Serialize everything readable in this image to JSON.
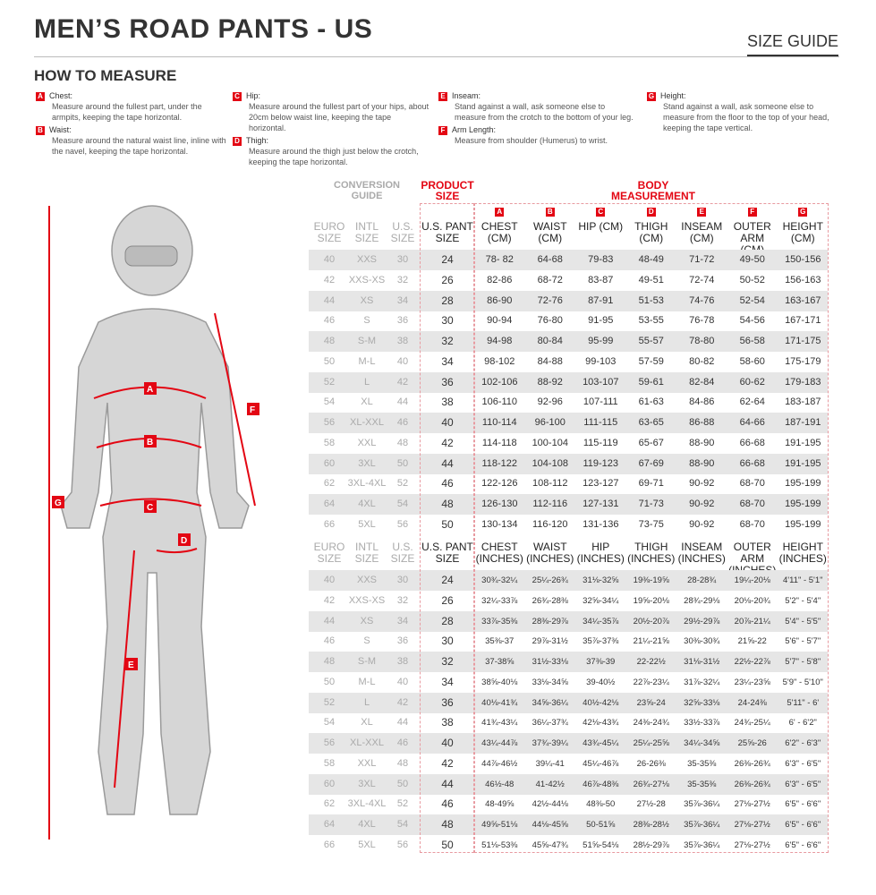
{
  "header": {
    "title": "MEN’S ROAD PANTS - US",
    "size_guide": "SIZE GUIDE",
    "how_to": "HOW TO MEASURE"
  },
  "accent_color": "#e30613",
  "instructions": [
    {
      "badge": "A",
      "label": "Chest:",
      "desc": "Measure around the fullest part, under the armpits, keeping the tape horizontal."
    },
    {
      "badge": "B",
      "label": "Waist:",
      "desc": "Measure around the natural waist line, inline with the navel, keeping the tape horizontal."
    },
    {
      "badge": "C",
      "label": "Hip:",
      "desc": "Measure around the fullest part of your hips, about 20cm below waist line, keeping the tape horizontal."
    },
    {
      "badge": "D",
      "label": "Thigh:",
      "desc": "Measure around the thigh just below the crotch, keeping the tape horizontal."
    },
    {
      "badge": "E",
      "label": "Inseam:",
      "desc": "Stand against a wall, ask someone else to measure from the crotch to the bottom of your leg."
    },
    {
      "badge": "F",
      "label": "Arm Length:",
      "desc": "Measure from shoulder (Humerus) to wrist."
    },
    {
      "badge": "G",
      "label": "Height:",
      "desc": "Stand against a wall, ask someone else to measure from the floor to the top of your head, keeping the tape vertical."
    }
  ],
  "figure": {
    "labels": [
      "A",
      "B",
      "C",
      "D",
      "E",
      "F",
      "G"
    ]
  },
  "table": {
    "group_headers": {
      "conversion": "CONVERSION GUIDE",
      "product": "PRODUCT SIZE",
      "body": "BODY MEASUREMENT"
    },
    "conv_headers": [
      "EURO SIZE",
      "INTL SIZE",
      "U.S. SIZE"
    ],
    "pant_header": "U.S. PANT SIZE",
    "badges": [
      "A",
      "B",
      "C",
      "D",
      "E",
      "F",
      "G"
    ],
    "cm_headers": [
      "CHEST (CM)",
      "WAIST (CM)",
      "HIP (CM)",
      "THIGH (CM)",
      "INSEAM (CM)",
      "OUTER ARM (CM)",
      "HEIGHT (CM)"
    ],
    "in_headers": [
      "CHEST (INCHES)",
      "WAIST (INCHES)",
      "HIP (INCHES)",
      "THIGH (INCHES)",
      "INSEAM (INCHES)",
      "OUTER ARM (INCHES)",
      "HEIGHT (INCHES)"
    ],
    "cm_rows": [
      [
        "40",
        "XXS",
        "30",
        "24",
        "78- 82",
        "64-68",
        "79-83",
        "48-49",
        "71-72",
        "49-50",
        "150-156"
      ],
      [
        "42",
        "XXS-XS",
        "32",
        "26",
        "82-86",
        "68-72",
        "83-87",
        "49-51",
        "72-74",
        "50-52",
        "156-163"
      ],
      [
        "44",
        "XS",
        "34",
        "28",
        "86-90",
        "72-76",
        "87-91",
        "51-53",
        "74-76",
        "52-54",
        "163-167"
      ],
      [
        "46",
        "S",
        "36",
        "30",
        "90-94",
        "76-80",
        "91-95",
        "53-55",
        "76-78",
        "54-56",
        "167-171"
      ],
      [
        "48",
        "S-M",
        "38",
        "32",
        "94-98",
        "80-84",
        "95-99",
        "55-57",
        "78-80",
        "56-58",
        "171-175"
      ],
      [
        "50",
        "M-L",
        "40",
        "34",
        "98-102",
        "84-88",
        "99-103",
        "57-59",
        "80-82",
        "58-60",
        "175-179"
      ],
      [
        "52",
        "L",
        "42",
        "36",
        "102-106",
        "88-92",
        "103-107",
        "59-61",
        "82-84",
        "60-62",
        "179-183"
      ],
      [
        "54",
        "XL",
        "44",
        "38",
        "106-110",
        "92-96",
        "107-111",
        "61-63",
        "84-86",
        "62-64",
        "183-187"
      ],
      [
        "56",
        "XL-XXL",
        "46",
        "40",
        "110-114",
        "96-100",
        "111-115",
        "63-65",
        "86-88",
        "64-66",
        "187-191"
      ],
      [
        "58",
        "XXL",
        "48",
        "42",
        "114-118",
        "100-104",
        "115-119",
        "65-67",
        "88-90",
        "66-68",
        "191-195"
      ],
      [
        "60",
        "3XL",
        "50",
        "44",
        "118-122",
        "104-108",
        "119-123",
        "67-69",
        "88-90",
        "66-68",
        "191-195"
      ],
      [
        "62",
        "3XL-4XL",
        "52",
        "46",
        "122-126",
        "108-112",
        "123-127",
        "69-71",
        "90-92",
        "68-70",
        "195-199"
      ],
      [
        "64",
        "4XL",
        "54",
        "48",
        "126-130",
        "112-116",
        "127-131",
        "71-73",
        "90-92",
        "68-70",
        "195-199"
      ],
      [
        "66",
        "5XL",
        "56",
        "50",
        "130-134",
        "116-120",
        "131-136",
        "73-75",
        "90-92",
        "68-70",
        "195-199"
      ]
    ],
    "in_rows": [
      [
        "40",
        "XXS",
        "30",
        "24",
        "30¾-32¼",
        "25¼-26¾",
        "31⅛-32⅝",
        "19⅜-19⅝",
        "28-28¾",
        "19¼-20⅛",
        "4'11\" - 5'1\""
      ],
      [
        "42",
        "XXS-XS",
        "32",
        "26",
        "32¼-33⅞",
        "26¾-28⅜",
        "32⅝-34¼",
        "19⅝-20⅛",
        "28¾-29⅛",
        "20⅛-20¾",
        "5'2\" - 5'4\""
      ],
      [
        "44",
        "XS",
        "34",
        "28",
        "33⅞-35⅜",
        "28⅜-29⅞",
        "34¼-35⅞",
        "20½-20⅞",
        "29½-29⅞",
        "20⅞-21¼",
        "5'4\" - 5'5\""
      ],
      [
        "46",
        "S",
        "36",
        "30",
        "35⅜-37",
        "29⅞-31½",
        "35⅞-37⅜",
        "21¼-21⅝",
        "30⅜-30¾",
        "21⅝-22",
        "5'6\" - 5'7\""
      ],
      [
        "48",
        "S-M",
        "38",
        "32",
        "37-38⅝",
        "31½-33⅛",
        "37⅜-39",
        "22-22½",
        "31⅛-31½",
        "22½-22⅞",
        "5'7\" - 5'8\""
      ],
      [
        "50",
        "M-L",
        "40",
        "34",
        "38⅝-40⅛",
        "33⅛-34⅝",
        "39-40½",
        "22⅞-23¼",
        "31⅞-32¼",
        "23¼-23⅝",
        "5'9\" - 5'10\""
      ],
      [
        "52",
        "L",
        "42",
        "36",
        "40⅛-41¾",
        "34⅝-36¼",
        "40½-42⅛",
        "23⅝-24",
        "32⅝-33⅛",
        "24-24⅜",
        "5'11\" - 6'"
      ],
      [
        "54",
        "XL",
        "44",
        "38",
        "41¾-43¼",
        "36¼-37¾",
        "42⅛-43¾",
        "24⅜-24¾",
        "33½-33⅞",
        "24¾-25¼",
        "6' - 6'2\""
      ],
      [
        "56",
        "XL-XXL",
        "46",
        "40",
        "43¼-44⅞",
        "37¾-39¼",
        "43¾-45¼",
        "25¼-25⅝",
        "34¼-34⅝",
        "25⅝-26",
        "6'2\" - 6'3\""
      ],
      [
        "58",
        "XXL",
        "48",
        "42",
        "44⅞-46½",
        "39¼-41",
        "45¼-46⅞",
        "26-26⅜",
        "35-35⅜",
        "26⅜-26¾",
        "6'3\" - 6'5\""
      ],
      [
        "60",
        "3XL",
        "50",
        "44",
        "46½-48",
        "41-42½",
        "46⅞-48⅜",
        "26¾-27⅛",
        "35-35⅜",
        "26⅜-26¾",
        "6'3\" - 6'5\""
      ],
      [
        "62",
        "3XL-4XL",
        "52",
        "46",
        "48-49⅝",
        "42½-44⅛",
        "48⅜-50",
        "27½-28",
        "35⅞-36¼",
        "27⅛-27½",
        "6'5\" - 6'6\""
      ],
      [
        "64",
        "4XL",
        "54",
        "48",
        "49⅝-51⅛",
        "44⅛-45⅝",
        "50-51⅝",
        "28⅜-28½",
        "35⅞-36¼",
        "27⅛-27½",
        "6'5\" - 6'6\""
      ],
      [
        "66",
        "5XL",
        "56",
        "50",
        "51⅛-53⅜",
        "45⅝-47¾",
        "51⅝-54⅛",
        "28½-29⅞",
        "35⅞-36¼",
        "27⅛-27½",
        "6'5\" - 6'6\""
      ]
    ]
  }
}
